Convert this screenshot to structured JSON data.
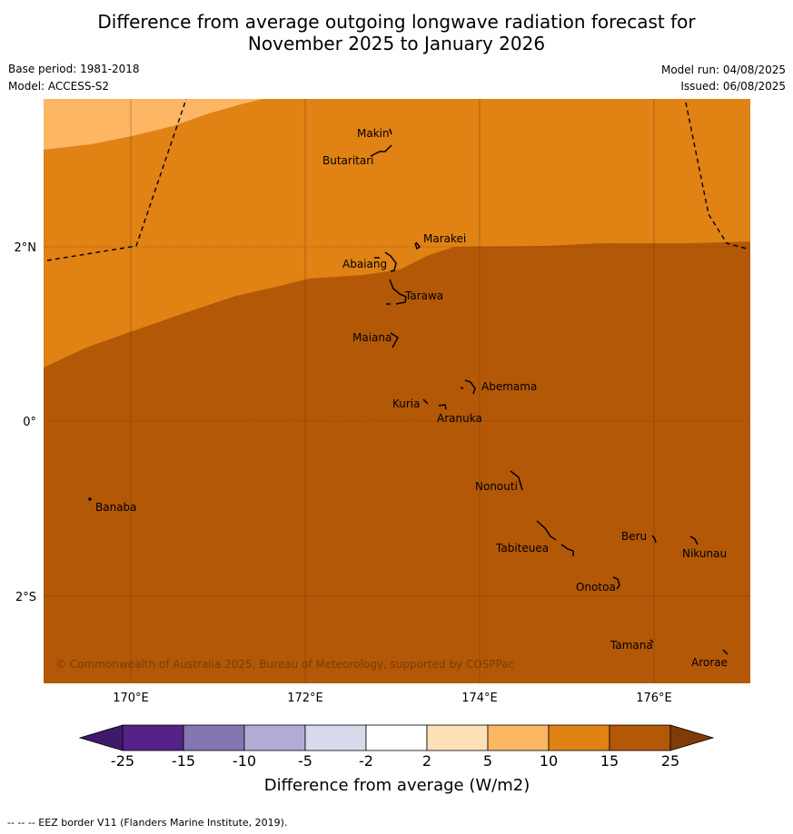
{
  "title_line1": "Difference from average outgoing longwave radiation forecast for",
  "title_line2": "November 2025 to January 2026",
  "base_period": "Base period: 1981-2018",
  "model": "Model: ACCESS-S2",
  "model_run": "Model run: 04/08/2025",
  "issued": "Issued: 06/08/2025",
  "copyright": "© Commonwealth of Australia 2025, Bureau of Meteorology, supported by COSPPac",
  "lon_ticks": [
    "170°E",
    "172°E",
    "174°E",
    "176°E"
  ],
  "lat_ticks": [
    "2°N",
    "0°",
    "2°S"
  ],
  "islands": [
    "Makin",
    "Butaritari",
    "Marakei",
    "Abaiang",
    "Tarawa",
    "Maiana",
    "Abemama",
    "Kuria",
    "Aranuka",
    "Banaba",
    "Nonouti",
    "Beru",
    "Nikunau",
    "Tabiteuea",
    "Onotoa",
    "Tamana",
    "Arorae"
  ],
  "colorbar": {
    "label": "Difference from average (W/m2)",
    "ticks": [
      "-25",
      "-15",
      "-10",
      "-5",
      "-2",
      "2",
      "5",
      "10",
      "15",
      "25"
    ],
    "colors": [
      "#3f1a6b",
      "#552288",
      "#8376b1",
      "#b2acd4",
      "#d9d9ec",
      "#ffffff",
      "#fee0b6",
      "#fdb664",
      "#e08214",
      "#b35806",
      "#7f3b08"
    ]
  },
  "footer": "--  --  -- EEZ border V11 (Flanders Marine Institute, 2019)."
}
